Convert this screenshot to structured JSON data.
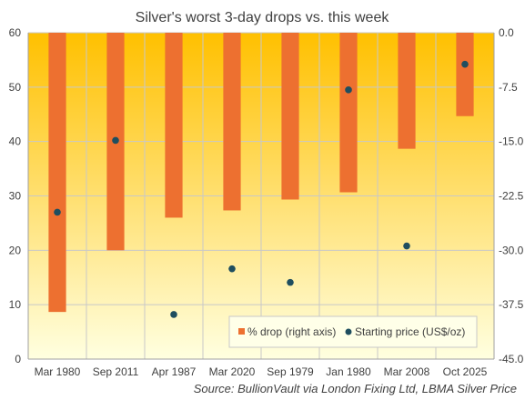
{
  "chart_data": {
    "type": "bar",
    "title": "Silver's worst 3-day drops vs. this week",
    "source": "Source:  BullionVault via London Fixing Ltd, LBMA Silver Price",
    "categories": [
      "Mar 1980",
      "Sep 2011",
      "Apr 1987",
      "Mar 2020",
      "Sep 1979",
      "Jan 1980",
      "Mar 2008",
      "Oct 2025"
    ],
    "series": [
      {
        "name": "% drop (right axis)",
        "type": "bar",
        "axis": "right",
        "color": "#ED7030",
        "values": [
          -38.5,
          -30.0,
          -25.5,
          -24.5,
          -23.0,
          -22.0,
          -16.0,
          -11.5
        ]
      },
      {
        "name": "Starting price (US$/oz)",
        "type": "scatter",
        "axis": "left",
        "color": "#1F4E5F",
        "values": [
          27.0,
          40.2,
          8.2,
          16.6,
          14.1,
          49.5,
          20.8,
          54.2
        ]
      }
    ],
    "left_axis": {
      "min": 0,
      "max": 60,
      "ticks": [
        "0",
        "10",
        "20",
        "30",
        "40",
        "50",
        "60"
      ]
    },
    "right_axis": {
      "min": -45,
      "max": 0,
      "ticks": [
        "0.0",
        "-7.5",
        "-15.0",
        "-22.5",
        "-30.0",
        "-37.5",
        "-45.0"
      ]
    },
    "grid": true,
    "legend_position": "bottom-right",
    "background_gradient": [
      "#FFC000",
      "#FFFFE0"
    ]
  }
}
